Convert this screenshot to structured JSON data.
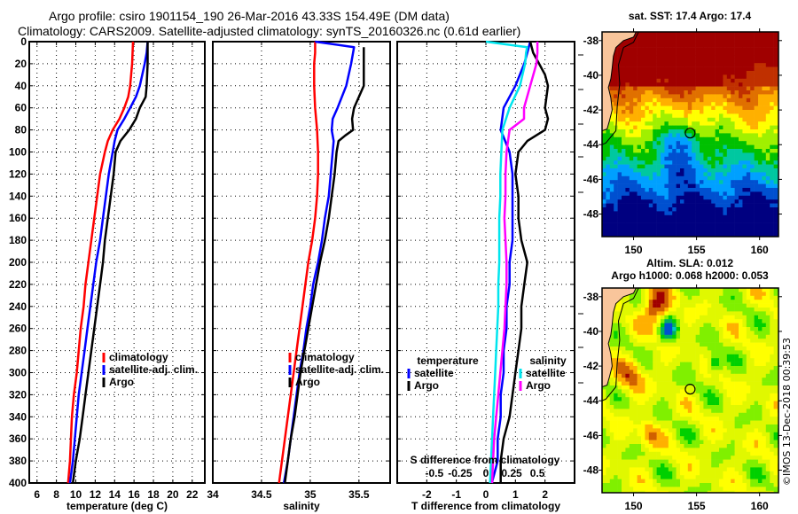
{
  "title": {
    "line1": "Argo profile: csiro 1901154_190 26-Mar-2016 43.33S 154.49E (DM data)",
    "line2": "Climatology: CARS2009. Satellite-adjusted climatology: synTS_20160326.nc (0.61d earlier)"
  },
  "colors": {
    "climatology": "#ff0000",
    "satellite": "#0000ff",
    "argo": "#000000",
    "sal_satellite": "#00e5ee",
    "sal_argo": "#ff00ff",
    "land": "#f9c59b"
  },
  "chart_data": [
    {
      "type": "line",
      "name": "temperature-profile",
      "xlabel": "temperature (deg C)",
      "ylabel": "depth",
      "xlim": [
        5.2,
        23.3
      ],
      "ylim": [
        400,
        0
      ],
      "xticks": [
        6,
        8,
        10,
        12,
        14,
        16,
        18,
        20,
        22
      ],
      "yticks": [
        0,
        20,
        40,
        60,
        80,
        100,
        120,
        140,
        160,
        180,
        200,
        220,
        240,
        260,
        280,
        300,
        320,
        340,
        360,
        380,
        400
      ],
      "grid": true,
      "legend": {
        "placement": "center-right",
        "entries": [
          "climatology",
          "satellite-adj. clim.",
          "Argo"
        ]
      },
      "series": [
        {
          "name": "climatology",
          "color": "#ff0000",
          "depth": [
            0,
            10,
            20,
            40,
            50,
            60,
            70,
            80,
            90,
            100,
            120,
            140,
            160,
            180,
            200,
            220,
            240,
            260,
            280,
            300,
            320,
            340,
            360,
            380,
            400
          ],
          "values": [
            15.9,
            15.85,
            15.8,
            15.6,
            15.4,
            15.0,
            14.5,
            13.8,
            13.3,
            13.0,
            12.5,
            12.2,
            11.9,
            11.6,
            11.3,
            11.0,
            10.8,
            10.5,
            10.3,
            10.1,
            9.8,
            9.6,
            9.5,
            9.4,
            9.2
          ]
        },
        {
          "name": "satellite-adj. clim.",
          "color": "#0000ff",
          "depth": [
            0,
            10,
            20,
            40,
            50,
            60,
            70,
            80,
            90,
            100,
            120,
            140,
            160,
            180,
            200,
            220,
            240,
            260,
            280,
            300,
            320,
            340,
            360,
            380,
            400
          ],
          "values": [
            17.4,
            17.3,
            17.1,
            16.6,
            16.2,
            15.6,
            15.0,
            14.3,
            14.0,
            13.8,
            13.4,
            13.1,
            12.8,
            12.5,
            12.1,
            11.8,
            11.5,
            11.2,
            10.9,
            10.6,
            10.3,
            10.1,
            9.9,
            9.7,
            9.4
          ]
        },
        {
          "name": "Argo",
          "color": "#000000",
          "depth": [
            0,
            10,
            20,
            40,
            50,
            60,
            70,
            80,
            90,
            100,
            120,
            140,
            160,
            180,
            200,
            220,
            240,
            260,
            280,
            300,
            320,
            340,
            360,
            380,
            400
          ],
          "values": [
            17.4,
            17.4,
            17.4,
            17.3,
            17.2,
            16.6,
            16.2,
            15.5,
            14.6,
            14.1,
            13.9,
            13.6,
            13.3,
            13.0,
            12.8,
            12.5,
            12.2,
            11.9,
            11.6,
            11.3,
            11.0,
            10.7,
            10.4,
            10.0,
            9.7
          ]
        }
      ]
    },
    {
      "type": "line",
      "name": "salinity-profile",
      "xlabel": "salinity",
      "ylabel": "depth",
      "xlim": [
        34.0,
        35.82
      ],
      "ylim": [
        400,
        0
      ],
      "xticks": [
        34,
        34.5,
        35,
        35.5
      ],
      "grid": true,
      "legend": {
        "placement": "center-right",
        "entries": [
          "climatology",
          "satellite-adj. clim.",
          "Argo"
        ]
      },
      "series": [
        {
          "name": "climatology",
          "color": "#ff0000",
          "depth": [
            0,
            10,
            20,
            40,
            60,
            80,
            100,
            120,
            140,
            160,
            180,
            200,
            220,
            240,
            260,
            280,
            300,
            320,
            340,
            360,
            380,
            400
          ],
          "values": [
            35.05,
            35.05,
            35.04,
            35.04,
            35.05,
            35.07,
            35.08,
            35.08,
            35.07,
            35.05,
            35.02,
            34.98,
            34.95,
            34.92,
            34.89,
            34.86,
            34.83,
            34.8,
            34.77,
            34.74,
            34.71,
            34.68
          ]
        },
        {
          "name": "satellite-adj. clim.",
          "color": "#0000ff",
          "depth": [
            0,
            5,
            10,
            20,
            40,
            60,
            70,
            80,
            90,
            100,
            120,
            140,
            160,
            180,
            200,
            220,
            240,
            260,
            280,
            300,
            320,
            340,
            360,
            380,
            400
          ],
          "values": [
            35.05,
            35.45,
            35.44,
            35.42,
            35.37,
            35.28,
            35.23,
            35.22,
            35.24,
            35.23,
            35.21,
            35.19,
            35.15,
            35.12,
            35.08,
            35.03,
            35.0,
            34.96,
            34.93,
            34.89,
            34.86,
            34.83,
            34.8,
            34.77,
            34.73
          ]
        },
        {
          "name": "Argo",
          "color": "#000000",
          "depth": [
            5,
            20,
            40,
            50,
            60,
            70,
            80,
            85,
            90,
            100,
            120,
            140,
            160,
            180,
            200,
            220,
            240,
            260,
            280,
            300,
            320,
            340,
            360,
            380,
            400
          ],
          "values": [
            35.55,
            35.55,
            35.55,
            35.5,
            35.45,
            35.43,
            35.44,
            35.36,
            35.29,
            35.27,
            35.25,
            35.22,
            35.19,
            35.15,
            35.1,
            35.06,
            35.02,
            34.98,
            34.94,
            34.9,
            34.87,
            34.84,
            34.8,
            34.77,
            34.74
          ]
        }
      ]
    },
    {
      "type": "line",
      "name": "difference-profile",
      "xlabel": "T difference from climatology",
      "secondary_xlabel": "S difference from climatology",
      "xlim": [
        -3,
        3
      ],
      "secondary_xlim": [
        -0.86,
        0.86
      ],
      "ylim": [
        400,
        0
      ],
      "xticks": [
        -2,
        -1,
        0,
        1,
        2
      ],
      "secondary_xticks": [
        -0.5,
        -0.25,
        0,
        0.25,
        0.5
      ],
      "grid": true,
      "legend": {
        "placement": "bottom",
        "groups": [
          {
            "title": "temperature",
            "entries": [
              "satellite",
              "Argo"
            ]
          },
          {
            "title": "salinity",
            "entries": [
              "satellite",
              "Argo"
            ]
          }
        ]
      },
      "series": [
        {
          "name": "temperature satellite",
          "axis": "T",
          "color": "#0000ff",
          "depth": [
            0,
            10,
            20,
            40,
            60,
            80,
            100,
            120,
            140,
            160,
            180,
            200,
            220,
            240,
            260,
            280,
            300,
            320,
            340,
            360,
            380,
            400
          ],
          "values": [
            1.5,
            1.4,
            1.3,
            1.0,
            0.6,
            0.5,
            0.8,
            0.9,
            0.9,
            0.9,
            0.9,
            0.8,
            0.8,
            0.7,
            0.7,
            0.6,
            0.6,
            0.5,
            0.5,
            0.4,
            0.4,
            0.2
          ]
        },
        {
          "name": "temperature Argo",
          "axis": "T",
          "color": "#000000",
          "depth": [
            0,
            10,
            20,
            30,
            40,
            60,
            70,
            80,
            90,
            100,
            120,
            140,
            160,
            180,
            200,
            220,
            240,
            260,
            280,
            300,
            320,
            340,
            360,
            380,
            400
          ],
          "values": [
            1.5,
            1.6,
            1.8,
            2.0,
            2.1,
            2.0,
            2.1,
            2.0,
            1.4,
            1.1,
            1.0,
            1.1,
            1.1,
            1.2,
            1.4,
            1.3,
            1.2,
            1.2,
            1.1,
            1.0,
            0.9,
            0.8,
            0.6,
            0.5,
            0.5
          ]
        },
        {
          "name": "salinity satellite",
          "axis": "S",
          "color": "#00e5ee",
          "depth": [
            0,
            5,
            10,
            20,
            40,
            60,
            80,
            100,
            120,
            140,
            160,
            180,
            200,
            220,
            240,
            260,
            280,
            300,
            320,
            340,
            360,
            380,
            400
          ],
          "values": [
            0.0,
            0.4,
            0.39,
            0.38,
            0.33,
            0.23,
            0.16,
            0.15,
            0.14,
            0.14,
            0.13,
            0.13,
            0.13,
            0.12,
            0.12,
            0.11,
            0.1,
            0.09,
            0.08,
            0.07,
            0.06,
            0.05,
            0.04
          ]
        },
        {
          "name": "salinity Argo",
          "axis": "S",
          "color": "#ff00ff",
          "depth": [
            0,
            10,
            20,
            40,
            60,
            70,
            80,
            100,
            120,
            140,
            160,
            180,
            200,
            220,
            240,
            260,
            280,
            300,
            320,
            340,
            360,
            380,
            400
          ],
          "values": [
            0.5,
            0.5,
            0.49,
            0.43,
            0.37,
            0.37,
            0.23,
            0.2,
            0.19,
            0.19,
            0.18,
            0.19,
            0.2,
            0.2,
            0.19,
            0.18,
            0.16,
            0.14,
            0.12,
            0.1,
            0.08,
            0.07,
            0.06
          ]
        }
      ]
    },
    {
      "type": "heatmap",
      "name": "sst-map",
      "title": "sat. SST: 17.4 Argo: 17.4",
      "xlim": [
        147.5,
        161.5
      ],
      "ylim": [
        -49.3,
        -37.5
      ],
      "xticks": [
        150,
        155,
        160
      ],
      "yticks": [
        -38,
        -40,
        -42,
        -44,
        -46,
        -48
      ],
      "marker": {
        "lon": 154.49,
        "lat": -43.33
      },
      "colormap": [
        "#000080",
        "#0050d0",
        "#00a0ff",
        "#00c8a0",
        "#00c000",
        "#a0f000",
        "#ffff00",
        "#ffb000",
        "#e07000",
        "#c03000",
        "#a00000"
      ]
    },
    {
      "type": "heatmap",
      "name": "sla-map",
      "title_line1": "Altim. SLA: 0.012",
      "title_line2": "Argo h1000: 0.068 h2000: 0.053",
      "xlim": [
        147.5,
        161.5
      ],
      "ylim": [
        -49.3,
        -37.5
      ],
      "xticks": [
        150,
        155,
        160
      ],
      "yticks": [
        -38,
        -40,
        -42,
        -44,
        -46,
        -48
      ],
      "marker": {
        "lon": 154.49,
        "lat": -43.33
      },
      "colormap": [
        "#0050d0",
        "#00c8c8",
        "#00b060",
        "#00d000",
        "#80f000",
        "#e0f800",
        "#ffff00",
        "#ffb000",
        "#d06000",
        "#a00000"
      ]
    }
  ],
  "footer": {
    "stamp": "©IMOS 13-Dec-2018 00:39:53"
  }
}
